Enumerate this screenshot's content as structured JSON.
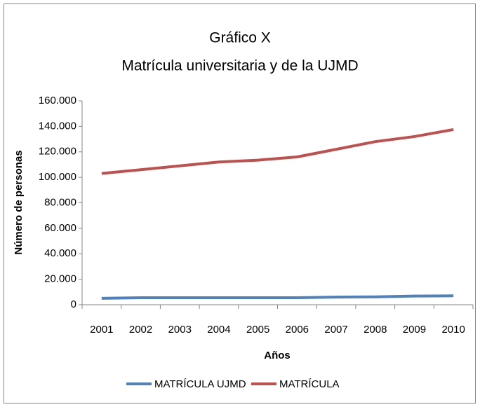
{
  "chart_data": {
    "type": "line",
    "title": "Gráfico X",
    "subtitle": "Matrícula universitaria y de la UJMD",
    "x_label": "Años",
    "y_label": "Número de personas",
    "categories": [
      "2001",
      "2002",
      "2003",
      "2004",
      "2005",
      "2006",
      "2007",
      "2008",
      "2009",
      "2010"
    ],
    "series": [
      {
        "name": "MATRÍCULA UJMD",
        "color": "#4f81bd",
        "values": [
          5000,
          5500,
          5500,
          5500,
          5500,
          5500,
          6000,
          6200,
          6800,
          7000
        ]
      },
      {
        "name": "MATRÍCULA",
        "color": "#c0504d",
        "values": [
          103000,
          106000,
          109000,
          112000,
          113500,
          116000,
          122000,
          128000,
          132000,
          137500
        ]
      }
    ],
    "ylim": [
      0,
      160000
    ],
    "yticks": [
      0,
      {
        "value": 20000,
        "label": "20.000"
      },
      {
        "value": 40000,
        "label": "40.000"
      },
      {
        "value": 60000,
        "label": "60.000"
      },
      {
        "value": 80000,
        "label": "80.000"
      },
      {
        "value": 100000,
        "label": "100.000"
      },
      {
        "value": 120000,
        "label": "120.000"
      },
      {
        "value": 140000,
        "label": "140.000"
      },
      {
        "value": 160000,
        "label": "160.000"
      }
    ],
    "legend": "bottom"
  }
}
